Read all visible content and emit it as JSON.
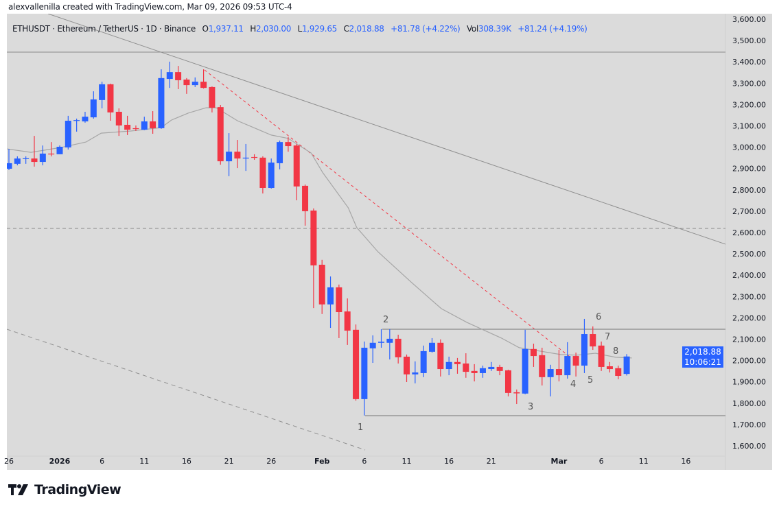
{
  "credit": "alexvallenilla created with TradingView.com, Mar 09, 2026 09:53 UTC-4",
  "legend": {
    "symbol": "ETHUSDT · Ethereum / TetherUS · 1D · Binance",
    "o_label": "O",
    "o": "1,937.11",
    "h_label": "H",
    "h": "2,030.00",
    "l_label": "L",
    "l": "1,929.65",
    "c_label": "C",
    "c": "2,018.88",
    "change": "+81.78 (+4.22%)",
    "vol_label": "Vol",
    "vol": "308.39K",
    "vol_change": "+81.24 (+4.19%)"
  },
  "price_badge": {
    "price": "2,018.88",
    "countdown": "10:06:21"
  },
  "logo": {
    "text": "TradingView"
  },
  "colors": {
    "up": "#2962ff",
    "down": "#f23645",
    "background": "#dbdbdb",
    "ma": "#a6a6a6",
    "trendline_red": "#f23645"
  },
  "chart_data": {
    "type": "candlestick",
    "symbol": "ETHUSDT",
    "interval": "1D",
    "ylim": [
      1600,
      3600
    ],
    "y_ticks": [
      "1,600.00",
      "1,700.00",
      "1,800.00",
      "1,900.00",
      "2,000.00",
      "2,100.00",
      "2,200.00",
      "2,300.00",
      "2,400.00",
      "2,500.00",
      "2,600.00",
      "2,700.00",
      "2,800.00",
      "2,900.00",
      "3,000.00",
      "3,100.00",
      "3,200.00",
      "3,300.00",
      "3,400.00",
      "3,500.00",
      "3,600.00"
    ],
    "x_ticks": [
      {
        "label": "26",
        "index": 0
      },
      {
        "label": "2026",
        "index": 6
      },
      {
        "label": "6",
        "index": 11
      },
      {
        "label": "11",
        "index": 16
      },
      {
        "label": "16",
        "index": 21
      },
      {
        "label": "21",
        "index": 26
      },
      {
        "label": "26",
        "index": 31
      },
      {
        "label": "Feb",
        "index": 37
      },
      {
        "label": "6",
        "index": 42
      },
      {
        "label": "11",
        "index": 47
      },
      {
        "label": "16",
        "index": 52
      },
      {
        "label": "21",
        "index": 57
      },
      {
        "label": "Mar",
        "index": 65
      },
      {
        "label": "6",
        "index": 70
      },
      {
        "label": "11",
        "index": 75
      },
      {
        "label": "16",
        "index": 80
      }
    ],
    "first_date": "2025-12-26",
    "ohlc": [
      [
        2899,
        2992,
        2893,
        2925
      ],
      [
        2922,
        2957,
        2915,
        2947
      ],
      [
        2945,
        2957,
        2922,
        2948
      ],
      [
        2947,
        3053,
        2909,
        2931
      ],
      [
        2931,
        3008,
        2915,
        2970
      ],
      [
        2970,
        3024,
        2957,
        2966
      ],
      [
        2967,
        3008,
        2967,
        3002
      ],
      [
        2999,
        3147,
        2989,
        3124
      ],
      [
        3124,
        3134,
        3073,
        3127
      ],
      [
        3121,
        3166,
        3115,
        3143
      ],
      [
        3140,
        3262,
        3134,
        3224
      ],
      [
        3221,
        3307,
        3182,
        3295
      ],
      [
        3295,
        3298,
        3124,
        3163
      ],
      [
        3166,
        3182,
        3053,
        3102
      ],
      [
        3105,
        3147,
        3057,
        3082
      ],
      [
        3089,
        3102,
        3076,
        3085
      ],
      [
        3082,
        3143,
        3080,
        3121
      ],
      [
        3121,
        3169,
        3063,
        3089
      ],
      [
        3089,
        3365,
        3086,
        3324
      ],
      [
        3320,
        3401,
        3278,
        3352
      ],
      [
        3352,
        3381,
        3272,
        3314
      ],
      [
        3317,
        3324,
        3250,
        3291
      ],
      [
        3291,
        3327,
        3282,
        3307
      ],
      [
        3307,
        3365,
        3275,
        3278
      ],
      [
        3282,
        3285,
        3163,
        3185
      ],
      [
        3188,
        3198,
        2918,
        2934
      ],
      [
        2934,
        3066,
        2864,
        2979
      ],
      [
        2979,
        3034,
        2902,
        2947
      ],
      [
        2947,
        3015,
        2889,
        2951
      ],
      [
        2954,
        2967,
        2941,
        2950
      ],
      [
        2951,
        2957,
        2783,
        2809
      ],
      [
        2809,
        2947,
        2806,
        2928
      ],
      [
        2925,
        3031,
        2896,
        3024
      ],
      [
        3024,
        3047,
        2979,
        3005
      ],
      [
        3008,
        3015,
        2751,
        2816
      ],
      [
        2819,
        2825,
        2632,
        2700
      ],
      [
        2703,
        2713,
        2246,
        2446
      ],
      [
        2449,
        2472,
        2218,
        2263
      ],
      [
        2263,
        2394,
        2153,
        2343
      ],
      [
        2343,
        2356,
        2105,
        2227
      ],
      [
        2230,
        2291,
        2073,
        2140
      ],
      [
        2144,
        2169,
        1812,
        1819
      ],
      [
        1819,
        2089,
        1742,
        2060
      ],
      [
        2057,
        2118,
        1989,
        2083
      ],
      [
        2083,
        2147,
        2060,
        2088
      ],
      [
        2083,
        2147,
        2005,
        2102
      ],
      [
        2102,
        2121,
        1986,
        2015
      ],
      [
        2018,
        2028,
        1899,
        1935
      ],
      [
        1935,
        1996,
        1893,
        1944
      ],
      [
        1941,
        2070,
        1922,
        2044
      ],
      [
        2041,
        2105,
        2037,
        2083
      ],
      [
        2083,
        2099,
        1925,
        1960
      ],
      [
        1960,
        2018,
        1931,
        1993
      ],
      [
        1993,
        2012,
        1938,
        1983
      ],
      [
        1986,
        2034,
        1919,
        1947
      ],
      [
        1951,
        1983,
        1902,
        1941
      ],
      [
        1941,
        1976,
        1919,
        1964
      ],
      [
        1960,
        1993,
        1951,
        1970
      ],
      [
        1970,
        1980,
        1931,
        1951
      ],
      [
        1954,
        1957,
        1832,
        1848
      ],
      [
        1851,
        1864,
        1796,
        1846
      ],
      [
        1845,
        2144,
        1842,
        2054
      ],
      [
        2054,
        2079,
        1970,
        2021
      ],
      [
        2025,
        2060,
        1883,
        1922
      ],
      [
        1922,
        1980,
        1832,
        1960
      ],
      [
        1960,
        2050,
        1902,
        1931
      ],
      [
        1931,
        2086,
        1915,
        2021
      ],
      [
        2021,
        2037,
        1925,
        1976
      ],
      [
        1976,
        2195,
        1941,
        2124
      ],
      [
        2124,
        2160,
        2050,
        2066
      ],
      [
        2070,
        2089,
        1951,
        1970
      ],
      [
        1973,
        1993,
        1944,
        1960
      ],
      [
        1964,
        1976,
        1912,
        1928
      ],
      [
        1937.11,
        2030,
        1929.65,
        2018.88
      ]
    ],
    "moving_average": [
      [
        -0.2,
        2992
      ],
      [
        2.6,
        2976
      ],
      [
        6.2,
        2999
      ],
      [
        9.1,
        3024
      ],
      [
        10.9,
        3066
      ],
      [
        14.4,
        3076
      ],
      [
        18.0,
        3092
      ],
      [
        19.2,
        3127
      ],
      [
        21.2,
        3160
      ],
      [
        23.3,
        3185
      ],
      [
        24.5,
        3185
      ],
      [
        27.0,
        3124
      ],
      [
        31.0,
        3057
      ],
      [
        33.0,
        3041
      ],
      [
        35.7,
        2973
      ],
      [
        37.1,
        2880
      ],
      [
        40.1,
        2716
      ],
      [
        41.1,
        2623
      ],
      [
        43.6,
        2510
      ],
      [
        47.6,
        2365
      ],
      [
        51.1,
        2243
      ],
      [
        54.1,
        2179
      ],
      [
        58.2,
        2105
      ],
      [
        60.3,
        2060
      ],
      [
        65.2,
        2028
      ],
      [
        67.1,
        2025
      ],
      [
        69.3,
        2034
      ],
      [
        71.7,
        2015
      ],
      [
        73.6,
        2012
      ]
    ],
    "horizontal_levels": [
      3446,
      2620
    ],
    "range_levels": [
      2145,
      1742
    ],
    "wave_labels": [
      "1",
      "2",
      "3",
      "4",
      "5",
      "6",
      "7",
      "8"
    ]
  }
}
